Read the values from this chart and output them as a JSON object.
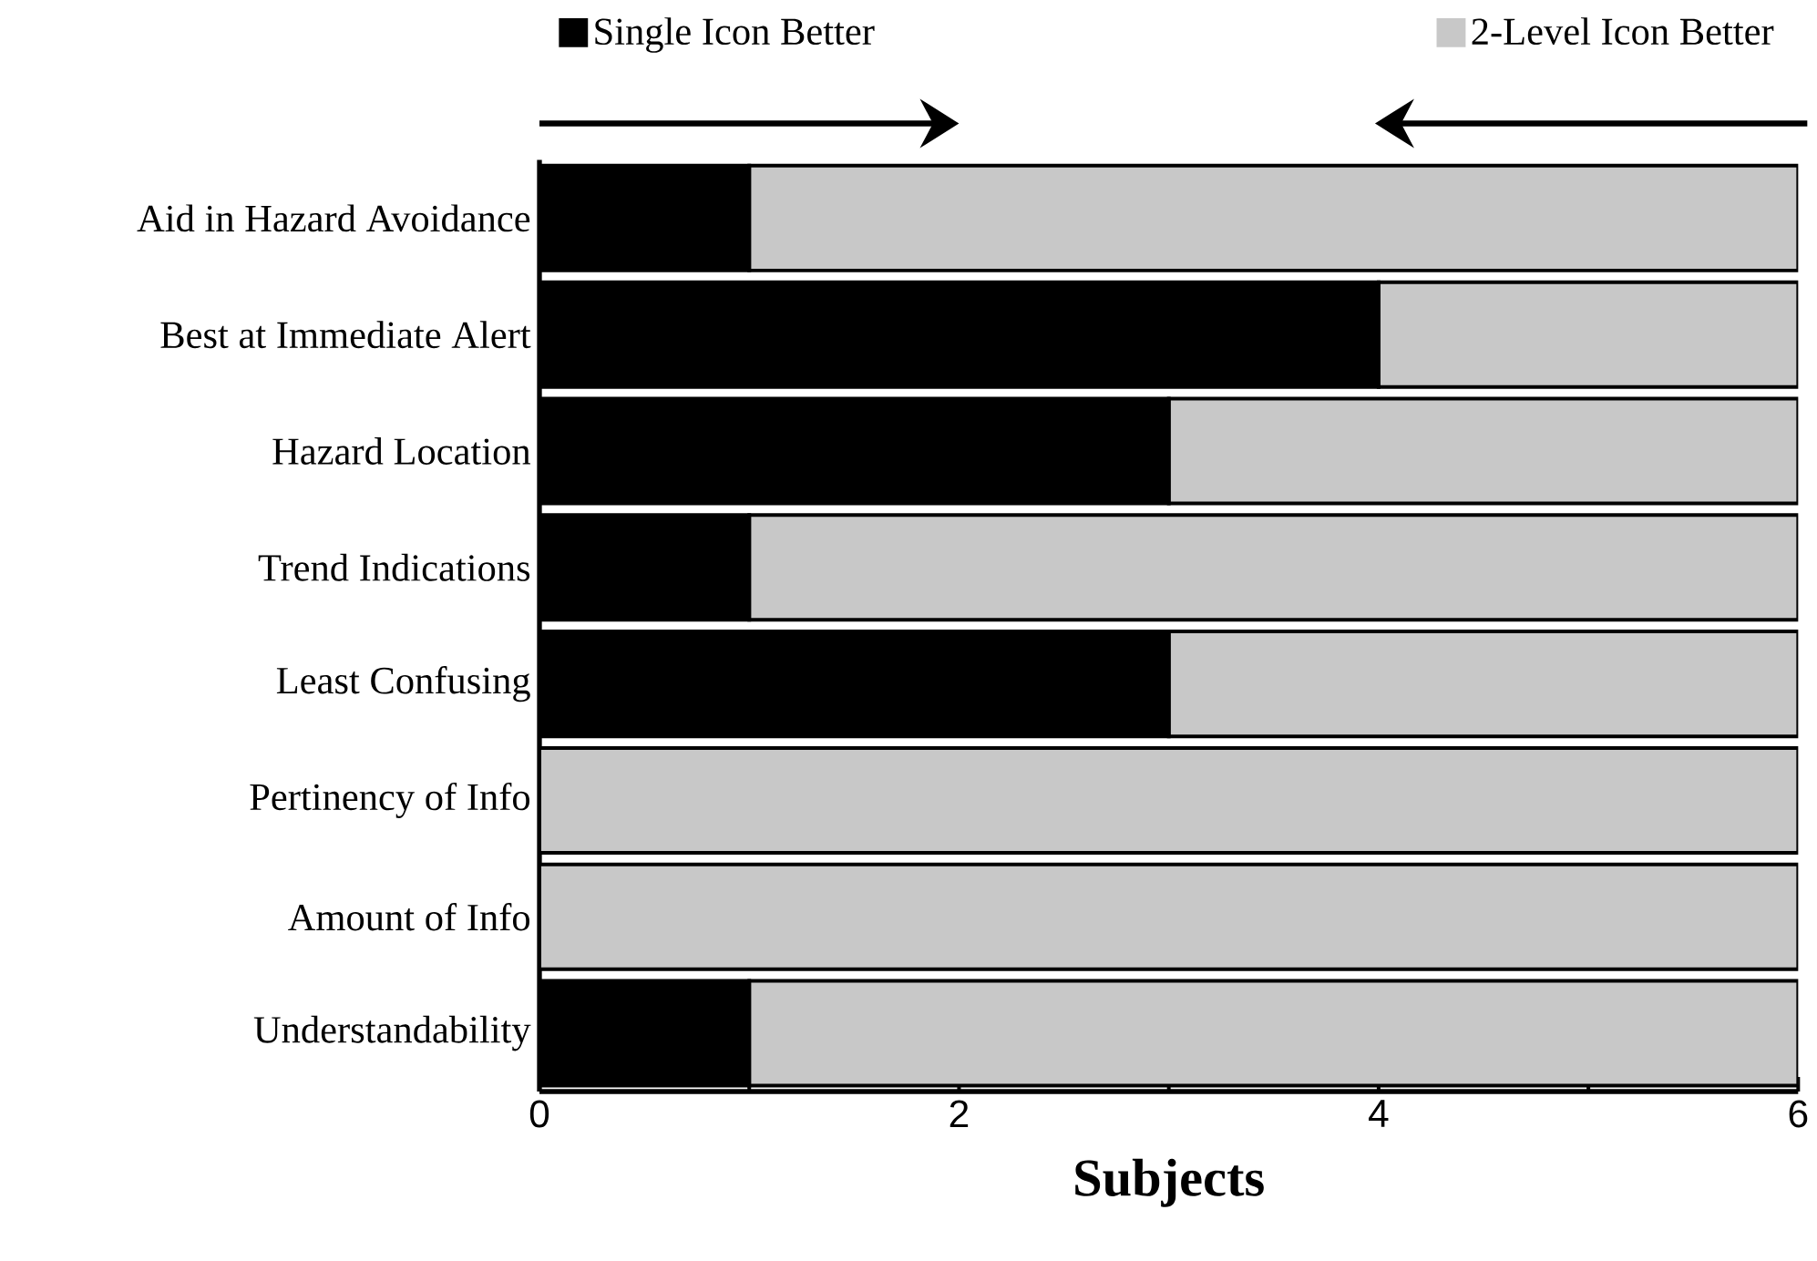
{
  "chart_data": {
    "type": "bar",
    "orientation": "horizontal",
    "stacked": true,
    "xlabel": "Subjects",
    "categories": [
      "Aid in Hazard Avoidance",
      "Best at Immediate Alert",
      "Hazard Location",
      "Trend Indications",
      "Least Confusing",
      "Pertinency of Info",
      "Amount of Info",
      "Understandability"
    ],
    "series": [
      {
        "name": "Single Icon Better",
        "color": "#000000",
        "values": [
          1,
          4,
          3,
          1,
          3,
          0,
          0,
          1
        ]
      },
      {
        "name": "2-Level Icon Better",
        "color": "#c8c8c8",
        "values": [
          5,
          2,
          3,
          5,
          3,
          6,
          6,
          5
        ]
      }
    ],
    "xlim": [
      0,
      6
    ],
    "xticks": [
      0,
      {
        "value": 1,
        "label": null
      },
      2,
      {
        "value": 3,
        "label": null
      },
      4,
      {
        "value": 5,
        "label": null
      },
      6
    ],
    "legend": "top",
    "grid": false
  }
}
